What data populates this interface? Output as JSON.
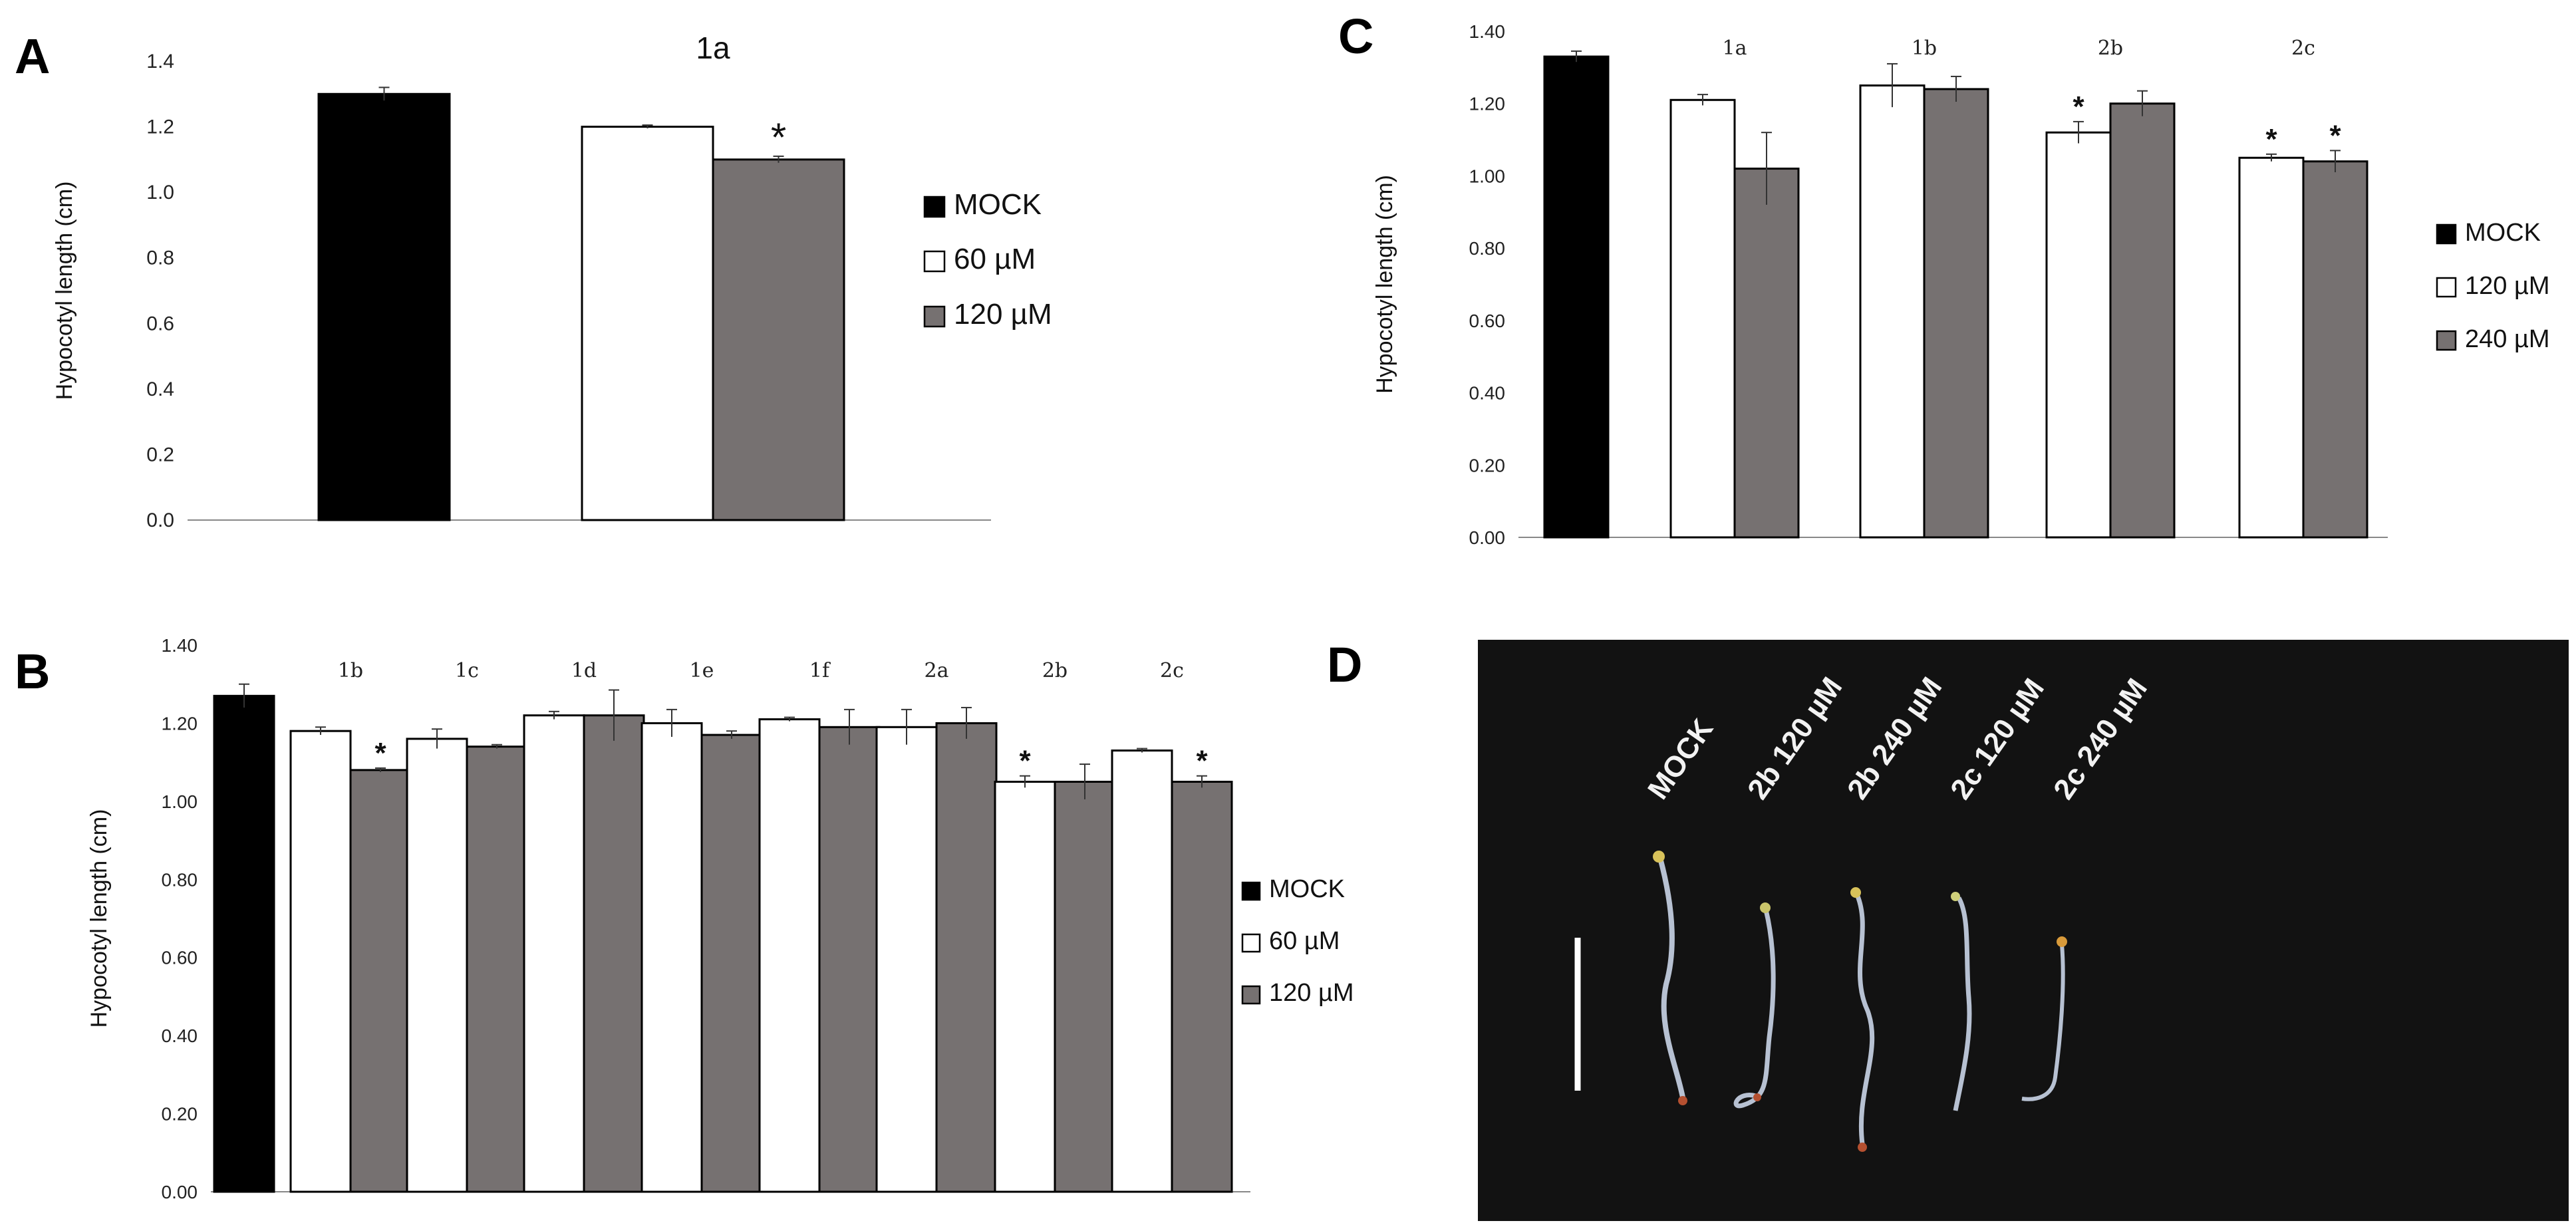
{
  "colors": {
    "MOCK": "#000000",
    "low": "#ffffff",
    "high": "#767171",
    "photo_bg": "#121212",
    "scale_bar": "#ffffff"
  },
  "panels": {
    "A": "A",
    "B": "B",
    "C": "C",
    "D": "D"
  },
  "chart_data": [
    {
      "id": "A",
      "type": "bar",
      "ylabel": "Hypocotyl length (cm)",
      "ylim": [
        0,
        1.4
      ],
      "yticks": [
        "0.0",
        "0.2",
        "0.4",
        "0.6",
        "0.8",
        "1.0",
        "1.2",
        "1.4"
      ],
      "legend": [
        "MOCK",
        "60 µM",
        "120 µM"
      ],
      "mock": {
        "value": 1.3,
        "err": 0.02
      },
      "groups": [
        {
          "label": "1a",
          "values": [
            1.2,
            1.1
          ],
          "errors": [
            0.005,
            0.01
          ],
          "marks": [
            "",
            "*"
          ]
        }
      ]
    },
    {
      "id": "B",
      "type": "bar",
      "ylabel": "Hypocotyl length (cm)",
      "ylim": [
        0,
        1.4
      ],
      "yticks": [
        "0.00",
        "0.20",
        "0.40",
        "0.60",
        "0.80",
        "1.00",
        "1.20",
        "1.40"
      ],
      "legend": [
        "MOCK",
        "60 µM",
        "120 µM"
      ],
      "mock": {
        "value": 1.27,
        "err": 0.03
      },
      "groups": [
        {
          "label": "1b",
          "values": [
            1.18,
            1.08
          ],
          "errors": [
            0.01,
            0.005
          ],
          "marks": [
            "",
            "*"
          ]
        },
        {
          "label": "1c",
          "values": [
            1.16,
            1.14
          ],
          "errors": [
            0.025,
            0.005
          ],
          "marks": [
            "",
            ""
          ]
        },
        {
          "label": "1d",
          "values": [
            1.22,
            1.22
          ],
          "errors": [
            0.01,
            0.065
          ],
          "marks": [
            "",
            ""
          ]
        },
        {
          "label": "1e",
          "values": [
            1.2,
            1.17
          ],
          "errors": [
            0.035,
            0.01
          ],
          "marks": [
            "",
            ""
          ]
        },
        {
          "label": "1f",
          "values": [
            1.21,
            1.19
          ],
          "errors": [
            0.005,
            0.045
          ],
          "marks": [
            "",
            ""
          ]
        },
        {
          "label": "2a",
          "values": [
            1.19,
            1.2
          ],
          "errors": [
            0.045,
            0.04
          ],
          "marks": [
            "",
            ""
          ]
        },
        {
          "label": "2b",
          "values": [
            1.05,
            1.05
          ],
          "errors": [
            0.015,
            0.045
          ],
          "marks": [
            "*",
            ""
          ]
        },
        {
          "label": "2c",
          "values": [
            1.13,
            1.05
          ],
          "errors": [
            0.005,
            0.015
          ],
          "marks": [
            "",
            "*"
          ]
        }
      ]
    },
    {
      "id": "C",
      "type": "bar",
      "ylabel": "Hypocotyl length (cm)",
      "ylim": [
        0,
        1.4
      ],
      "yticks": [
        "0.00",
        "0.20",
        "0.40",
        "0.60",
        "0.80",
        "1.00",
        "1.20",
        "1.40"
      ],
      "legend": [
        "MOCK",
        "120 µM",
        "240 µM"
      ],
      "mock": {
        "value": 1.33,
        "err": 0.015
      },
      "groups": [
        {
          "label": "1a",
          "values": [
            1.21,
            1.02
          ],
          "errors": [
            0.015,
            0.1
          ],
          "marks": [
            "",
            ""
          ]
        },
        {
          "label": "1b",
          "values": [
            1.25,
            1.24
          ],
          "errors": [
            0.06,
            0.035
          ],
          "marks": [
            "",
            ""
          ]
        },
        {
          "label": "2b",
          "values": [
            1.12,
            1.2
          ],
          "errors": [
            0.03,
            0.035
          ],
          "marks": [
            "*",
            ""
          ]
        },
        {
          "label": "2c",
          "values": [
            1.05,
            1.04
          ],
          "errors": [
            0.01,
            0.03
          ],
          "marks": [
            "*",
            "*"
          ]
        }
      ]
    }
  ],
  "photo": {
    "labels": [
      "MOCK",
      "2b 120 µM",
      "2b 240 µM",
      "2c 120 µM",
      "2c 240 µM"
    ]
  }
}
